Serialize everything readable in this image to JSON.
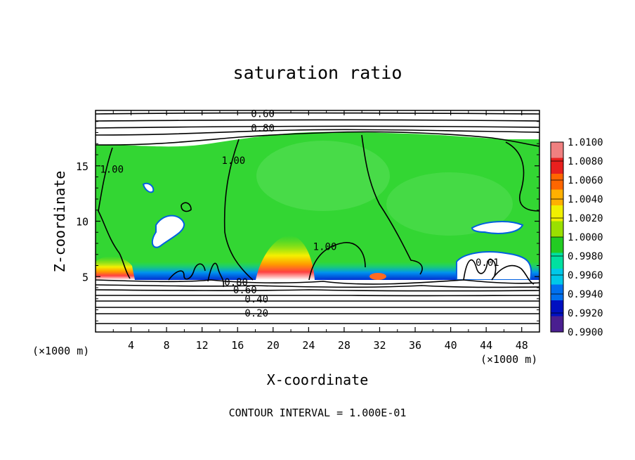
{
  "chart_data": {
    "type": "heatmap",
    "title": "saturation ratio",
    "xlabel": "X-coordinate",
    "ylabel": "Z-coordinate",
    "x_unit": "(×1000 m)",
    "x_unit_right": "(×1000 m)",
    "xlim": [
      0,
      50
    ],
    "ylim": [
      0,
      20
    ],
    "x_ticks": [
      4,
      8,
      12,
      16,
      20,
      24,
      28,
      32,
      36,
      40,
      44,
      48
    ],
    "y_ticks": [
      5,
      10,
      15
    ],
    "footer": "CONTOUR INTERVAL = 1.000E-01",
    "colorbar": {
      "ticks": [
        "1.0100",
        "1.0080",
        "1.0060",
        "1.0040",
        "1.0020",
        "1.0000",
        "0.9980",
        "0.9960",
        "0.9940",
        "0.9920",
        "0.9900"
      ],
      "colors": [
        "#f08080",
        "#e8201e",
        "#ff6600",
        "#ffb000",
        "#f0f000",
        "#9ae000",
        "#22cc22",
        "#00e0a0",
        "#00c8e8",
        "#0070f0",
        "#0010c0",
        "#4a1f90"
      ]
    },
    "contour_labels": [
      {
        "text": "0.60",
        "x": 17.5,
        "z": 19.7
      },
      {
        "text": "0.80",
        "x": 17.5,
        "z": 18.4
      },
      {
        "text": "1.00",
        "x": 0.5,
        "z": 14.7
      },
      {
        "text": "1.00",
        "x": 14.2,
        "z": 15.5
      },
      {
        "text": "1.00",
        "x": 24.5,
        "z": 7.7
      },
      {
        "text": "0.80",
        "x": 14.5,
        "z": 4.5
      },
      {
        "text": "0.60",
        "x": 15.5,
        "z": 3.8
      },
      {
        "text": "0.40",
        "x": 16.8,
        "z": 3.0
      },
      {
        "text": "0.20",
        "x": 16.8,
        "z": 1.7
      },
      {
        "text": "0.01",
        "x": 42.8,
        "z": 6.3
      }
    ]
  }
}
